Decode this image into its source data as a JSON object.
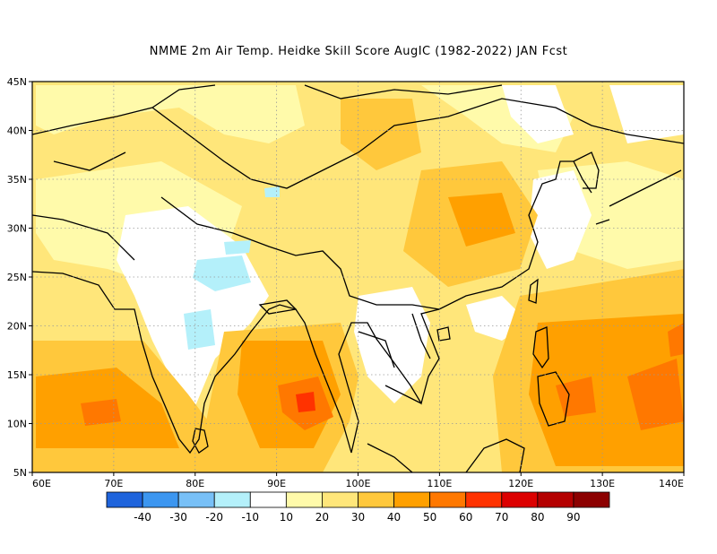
{
  "title": "NMME  2m Air Temp. Heidke Skill Score AugIC (1982-2022) JAN Fcst",
  "map": {
    "lon_range": [
      60,
      140
    ],
    "lat_range": [
      5,
      45
    ],
    "lat_ticks": [
      {
        "value": 45,
        "label": "45N"
      },
      {
        "value": 40,
        "label": "40N"
      },
      {
        "value": 35,
        "label": "35N"
      },
      {
        "value": 30,
        "label": "30N"
      },
      {
        "value": 25,
        "label": "25N"
      },
      {
        "value": 20,
        "label": "20N"
      },
      {
        "value": 15,
        "label": "15N"
      },
      {
        "value": 10,
        "label": "10N"
      },
      {
        "value": 5,
        "label": "5N"
      }
    ],
    "lon_ticks": [
      {
        "value": 60,
        "label": "60E"
      },
      {
        "value": 70,
        "label": "70E"
      },
      {
        "value": 80,
        "label": "80E"
      },
      {
        "value": 90,
        "label": "90E"
      },
      {
        "value": 100,
        "label": "100E"
      },
      {
        "value": 110,
        "label": "110E"
      },
      {
        "value": 120,
        "label": "120E"
      },
      {
        "value": 130,
        "label": "130E"
      },
      {
        "value": 140,
        "label": "140E"
      }
    ],
    "gridlines": "dotted"
  },
  "colorbar": {
    "colors": [
      "#1f64dc",
      "#3c96f0",
      "#78c0f7",
      "#b4f0fa",
      "#ffffff",
      "#fffaaa",
      "#ffe67a",
      "#ffc83c",
      "#ffa000",
      "#ff7800",
      "#ff3200",
      "#dc0000",
      "#b40000",
      "#8c0000"
    ],
    "labels": [
      "-40",
      "-30",
      "-20",
      "-10",
      "10",
      "20",
      "30",
      "40",
      "50",
      "60",
      "70",
      "80",
      "90"
    ]
  }
}
